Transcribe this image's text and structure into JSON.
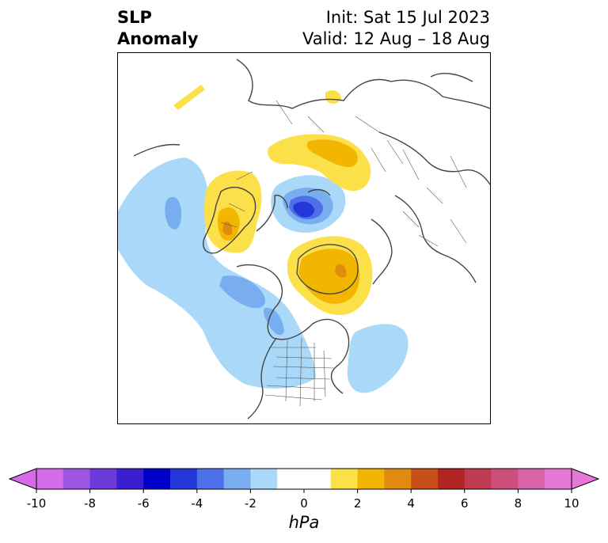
{
  "title": {
    "left_line1": "SLP",
    "left_line2": "Anomaly",
    "right_line1": "Init: Sat 15 Jul 2023",
    "right_line2": "Valid: 12 Aug – 18 Aug"
  },
  "colorbar": {
    "unit": "hPa",
    "ticks": [
      "-10",
      "-8",
      "-6",
      "-4",
      "-2",
      "0",
      "2",
      "4",
      "6",
      "8",
      "10"
    ],
    "colors": [
      "#d56be8",
      "#9c55e0",
      "#6b3ad8",
      "#3a1fd0",
      "#0000c8",
      "#2437d8",
      "#4d70e8",
      "#78aef0",
      "#aad8f8",
      "#ffffff",
      "#ffffff",
      "#fbe04a",
      "#f2b500",
      "#e08a10",
      "#c85018",
      "#b02424",
      "#c03a50",
      "#cc4e7a",
      "#d763a8",
      "#e878d8"
    ],
    "extend_min_color": "#d56be8",
    "extend_max_color": "#e878d8"
  }
}
